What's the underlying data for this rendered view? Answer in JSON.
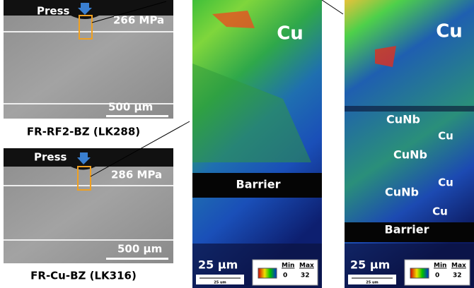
{
  "sem_panels": [
    {
      "press": "Press",
      "stress": "266 MPa",
      "scale": "500 μm",
      "caption": "FR-RF2-BZ (LK288)"
    },
    {
      "press": "Press",
      "stress": "286 MPa",
      "scale": "500 μm",
      "caption": "FR-Cu-BZ (LK316)"
    }
  ],
  "maps": [
    {
      "labels": [
        "Cu",
        "Barrier"
      ],
      "scale": "25 μm",
      "scale_small": "25 um",
      "legend": {
        "min_label": "Min",
        "min": 0,
        "max_label": "Max",
        "max": 32
      }
    },
    {
      "labels": [
        "Cu",
        "CuNb",
        "Cu",
        "CuNb",
        "Cu",
        "CuNb",
        "Cu",
        "Barrier"
      ],
      "scale": "25 μm",
      "scale_small": "25 um",
      "legend": {
        "min_label": "Min",
        "min": 0,
        "max_label": "Max",
        "max": 32
      }
    }
  ]
}
